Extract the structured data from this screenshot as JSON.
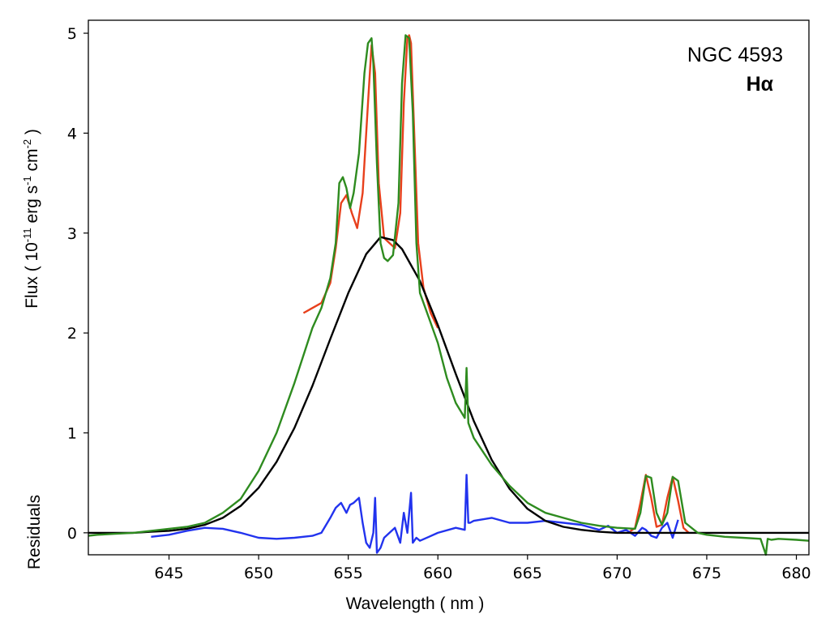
{
  "chart_data": {
    "type": "line",
    "title": "",
    "xlabel": "Wavelength ( nm )",
    "ylabel": "Flux ( 10",
    "ylabel_exp1": "-11",
    "ylabel_mid": " erg s",
    "ylabel_exp2": "-1",
    "ylabel_mid2": " cm",
    "ylabel_exp3": "-2",
    "ylabel_end": " )",
    "residuals_label": "Residuals",
    "annotations": [
      "NGC 4593",
      "Hα"
    ],
    "xlim": [
      640.5,
      680.7
    ],
    "ylim": [
      -0.22,
      5.13
    ],
    "x_ticks": [
      645,
      650,
      655,
      660,
      665,
      670,
      675,
      680
    ],
    "y_ticks": [
      0,
      1,
      2,
      3,
      4,
      5
    ],
    "grid": false,
    "series": [
      {
        "color": "#2e8b1f",
        "x": [
          640.5,
          641,
          642,
          643,
          644,
          645,
          646,
          647,
          648,
          649,
          650,
          651,
          652,
          653,
          653.5,
          654,
          654.3,
          654.5,
          654.7,
          654.9,
          655.1,
          655.3,
          655.6,
          655.9,
          656.1,
          656.3,
          656.4,
          656.6,
          656.8,
          657.0,
          657.2,
          657.5,
          657.8,
          658.0,
          658.2,
          658.4,
          658.6,
          658.8,
          659.0,
          659.5,
          660,
          660.5,
          661,
          661.5,
          661.6,
          661.7,
          661.8,
          662,
          663,
          664,
          665,
          666,
          667,
          668,
          669,
          670,
          671,
          671.3,
          671.6,
          671.9,
          672.2,
          672.5,
          672.8,
          673.1,
          673.4,
          673.8,
          674.5,
          675,
          676,
          677,
          678,
          678.3,
          678.4,
          678.6,
          679,
          680,
          680.7
        ],
        "y": [
          -0.03,
          -0.02,
          -0.01,
          0.0,
          0.02,
          0.04,
          0.06,
          0.1,
          0.2,
          0.34,
          0.62,
          1.0,
          1.5,
          2.05,
          2.25,
          2.55,
          2.9,
          3.5,
          3.56,
          3.45,
          3.25,
          3.4,
          3.8,
          4.6,
          4.9,
          4.95,
          4.7,
          3.7,
          2.9,
          2.75,
          2.72,
          2.78,
          3.3,
          4.5,
          4.98,
          4.95,
          4.2,
          2.9,
          2.4,
          2.15,
          1.9,
          1.55,
          1.3,
          1.15,
          1.65,
          1.1,
          1.05,
          0.95,
          0.68,
          0.47,
          0.3,
          0.2,
          0.15,
          0.1,
          0.07,
          0.05,
          0.04,
          0.2,
          0.57,
          0.55,
          0.2,
          0.08,
          0.2,
          0.56,
          0.52,
          0.1,
          0.0,
          -0.02,
          -0.04,
          -0.05,
          -0.06,
          -0.22,
          -0.06,
          -0.07,
          -0.06,
          -0.07,
          -0.08
        ]
      },
      {
        "color": "#e8401c",
        "x": [
          652.5,
          653.5,
          654.0,
          654.3,
          654.6,
          654.9,
          655.2,
          655.5,
          655.8,
          656.1,
          656.3,
          656.5,
          656.7,
          657.0,
          657.3,
          657.6,
          657.9,
          658.1,
          658.3,
          658.4,
          658.5,
          658.7,
          658.9,
          659.2,
          659.6,
          660.0,
          670.7,
          671.0,
          671.3,
          671.6,
          671.9,
          672.2,
          672.5,
          672.8,
          673.1,
          673.4,
          673.7,
          674.0
        ],
        "y": [
          2.2,
          2.3,
          2.5,
          2.85,
          3.3,
          3.38,
          3.2,
          3.05,
          3.4,
          4.3,
          4.88,
          4.6,
          3.5,
          2.95,
          2.9,
          2.85,
          3.2,
          4.3,
          4.95,
          4.98,
          4.9,
          3.9,
          2.9,
          2.45,
          2.2,
          2.05,
          0.01,
          0.05,
          0.3,
          0.58,
          0.35,
          0.06,
          0.08,
          0.35,
          0.56,
          0.32,
          0.05,
          0.0
        ]
      },
      {
        "color": "#000000",
        "x": [
          640.5,
          641,
          642,
          643,
          644,
          645,
          646,
          647,
          648,
          649,
          650,
          651,
          652,
          653,
          654,
          655,
          656,
          656.8,
          657.5,
          658,
          659,
          660,
          661,
          662,
          663,
          664,
          665,
          666,
          667,
          668,
          669,
          670,
          671,
          672,
          673,
          674,
          675,
          676,
          677,
          678,
          679,
          680,
          680.7
        ],
        "y": [
          0.0,
          0.0,
          0.0,
          0.0,
          0.01,
          0.02,
          0.04,
          0.08,
          0.15,
          0.27,
          0.45,
          0.71,
          1.05,
          1.47,
          1.94,
          2.4,
          2.79,
          2.96,
          2.93,
          2.84,
          2.52,
          2.08,
          1.59,
          1.12,
          0.73,
          0.44,
          0.24,
          0.12,
          0.06,
          0.03,
          0.01,
          0.0,
          0.0,
          0.0,
          0.0,
          0.0,
          0.0,
          0.0,
          0.0,
          0.0,
          0.0,
          0.0,
          0.0
        ]
      },
      {
        "color": "#2233ee",
        "x": [
          644,
          645,
          646,
          647,
          648,
          649,
          650,
          651,
          652,
          653,
          653.5,
          654.0,
          654.3,
          654.6,
          654.9,
          655.1,
          655.3,
          655.6,
          655.8,
          656.0,
          656.2,
          656.4,
          656.5,
          656.6,
          656.8,
          657.0,
          657.3,
          657.6,
          657.9,
          658.1,
          658.3,
          658.5,
          658.6,
          658.8,
          659.0,
          659.5,
          660,
          661,
          661.5,
          661.6,
          661.7,
          661.8,
          662,
          663,
          664,
          665,
          666,
          667,
          668,
          669,
          669.5,
          670,
          670.5,
          671,
          671.4,
          671.6,
          671.9,
          672.2,
          672.5,
          672.8,
          673.1,
          673.4
        ],
        "y": [
          -0.04,
          -0.02,
          0.02,
          0.05,
          0.04,
          0.0,
          -0.05,
          -0.06,
          -0.05,
          -0.03,
          0.0,
          0.15,
          0.25,
          0.3,
          0.2,
          0.28,
          0.3,
          0.35,
          0.1,
          -0.1,
          -0.15,
          0.0,
          0.35,
          -0.2,
          -0.15,
          -0.05,
          0.0,
          0.05,
          -0.1,
          0.2,
          0.0,
          0.4,
          -0.1,
          -0.05,
          -0.08,
          -0.04,
          0.0,
          0.05,
          0.03,
          0.58,
          0.1,
          0.1,
          0.12,
          0.15,
          0.1,
          0.1,
          0.12,
          0.1,
          0.08,
          0.03,
          0.07,
          0.0,
          0.03,
          -0.03,
          0.05,
          0.03,
          -0.03,
          -0.05,
          0.05,
          0.1,
          -0.05,
          0.13
        ]
      }
    ]
  }
}
